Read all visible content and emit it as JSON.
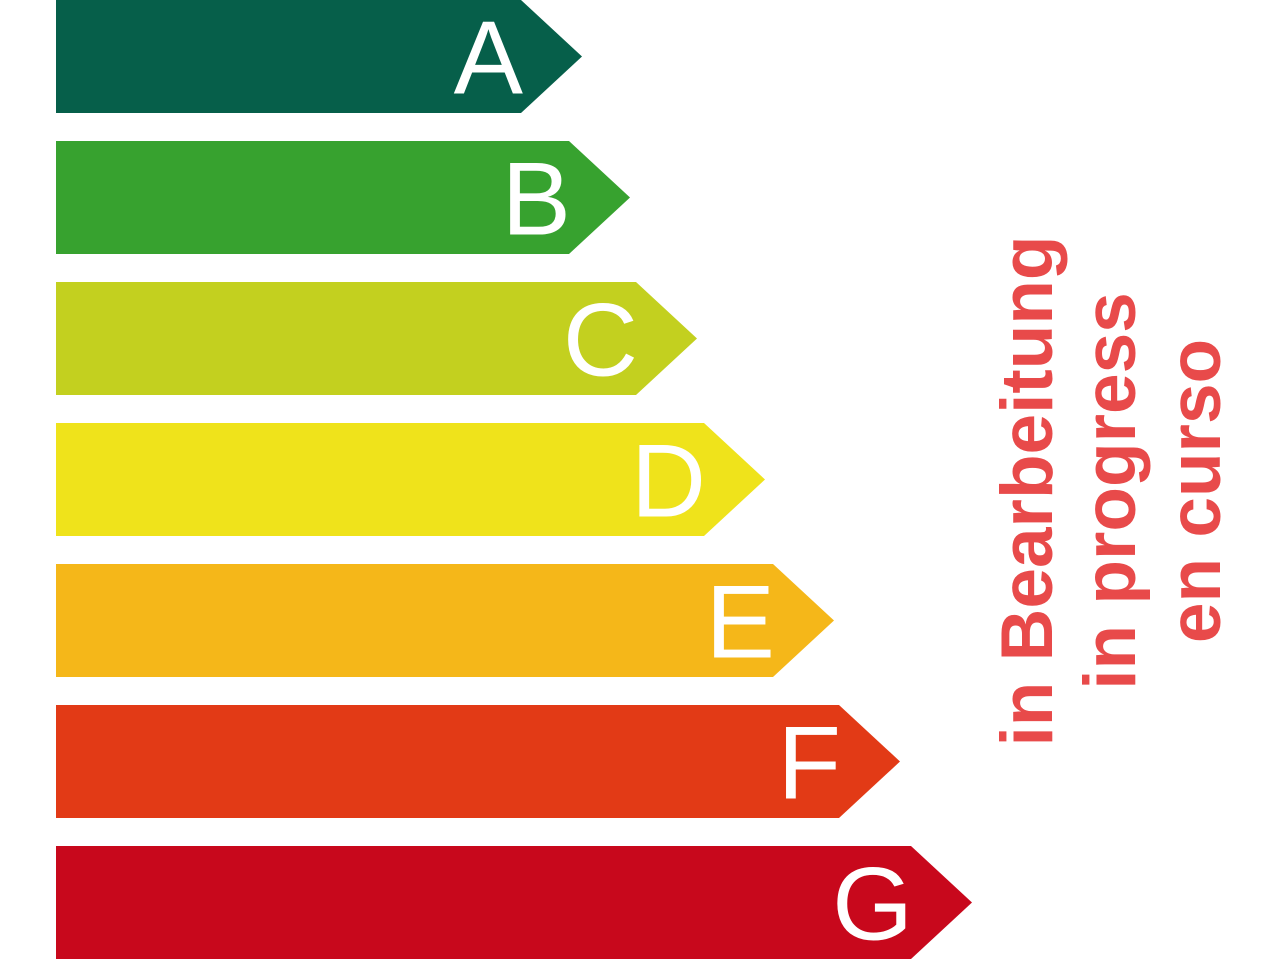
{
  "classes": [
    {
      "label": "A",
      "color": "#065f4a"
    },
    {
      "label": "B",
      "color": "#37a22f"
    },
    {
      "label": "C",
      "color": "#c3d01f"
    },
    {
      "label": "D",
      "color": "#efe31b"
    },
    {
      "label": "E",
      "color": "#f5b719"
    },
    {
      "label": "F",
      "color": "#e23a16"
    },
    {
      "label": "G",
      "color": "#c8081c"
    }
  ],
  "status": {
    "color": "#e84a4a",
    "lines": [
      "in Bearbeitung",
      "in progress",
      "en curso"
    ]
  }
}
